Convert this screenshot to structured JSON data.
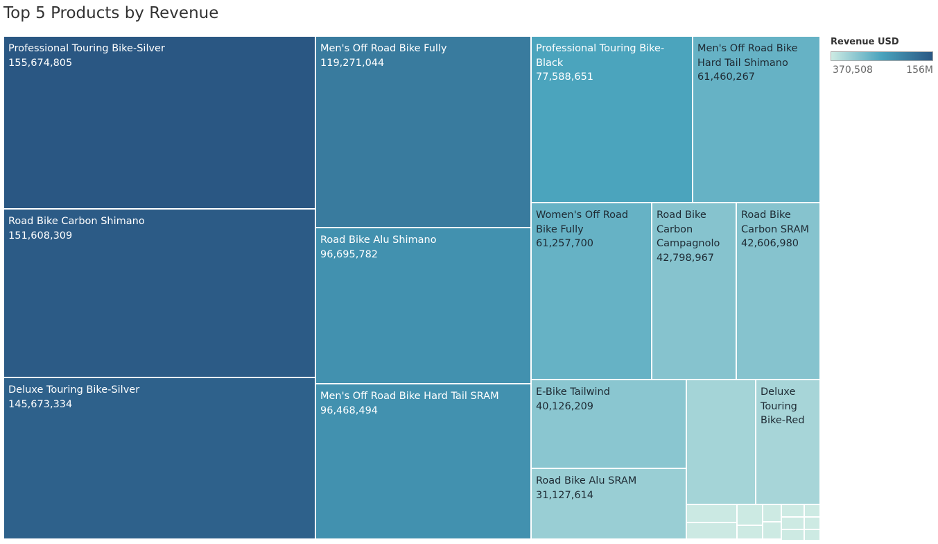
{
  "chart_data": {
    "type": "treemap",
    "title": "Top 5 Products by Revenue",
    "legend_title": "Revenue USD",
    "color_range": [
      {
        "value": 370508,
        "label": "370,508"
      },
      {
        "value": 156000000,
        "label": "156M"
      }
    ],
    "colors": [
      "#cdeae3",
      "#4aa3bd",
      "#2a5783"
    ],
    "categories": [
      "Professional Touring Bike-Silver",
      "Road Bike Carbon Shimano",
      "Deluxe Touring Bike-Silver",
      "Men's Off Road Bike Fully",
      "Road Bike Alu Shimano",
      "Men's Off Road Bike Hard Tail SRAM",
      "Professional Touring Bike-Black",
      "Men's Off Road Bike Hard Tail Shimano",
      "Women's Off Road Bike Fully",
      "Road Bike Carbon Campagnolo",
      "Road Bike Carbon SRAM",
      "E-Bike Tailwind",
      "Road Bike Alu SRAM",
      null,
      "Deluxe Touring Bike-Red",
      null,
      null,
      null,
      null,
      null,
      null,
      null,
      null,
      null,
      null,
      null,
      null
    ],
    "values": [
      155674805,
      151608309,
      145673334,
      119271044,
      96695782,
      96468494,
      77588651,
      61460267,
      61257700,
      42798967,
      42606980,
      40126209,
      31127614,
      25000000,
      23000000,
      1300000,
      1200000,
      800000,
      500000,
      500000,
      480000,
      420000,
      410000,
      400000,
      380000,
      375000,
      370508
    ],
    "value_labels": [
      "155,674,805",
      "151,608,309",
      "145,673,334",
      "119,271,044",
      "96,695,782",
      "96,468,494",
      "77,588,651",
      "61,460,267",
      "61,257,700",
      "42,798,967",
      "42,606,980",
      "40,126,209",
      "31,127,614",
      null,
      null,
      null,
      null,
      null,
      null,
      null,
      null,
      null,
      null,
      null,
      null,
      null,
      null
    ]
  }
}
